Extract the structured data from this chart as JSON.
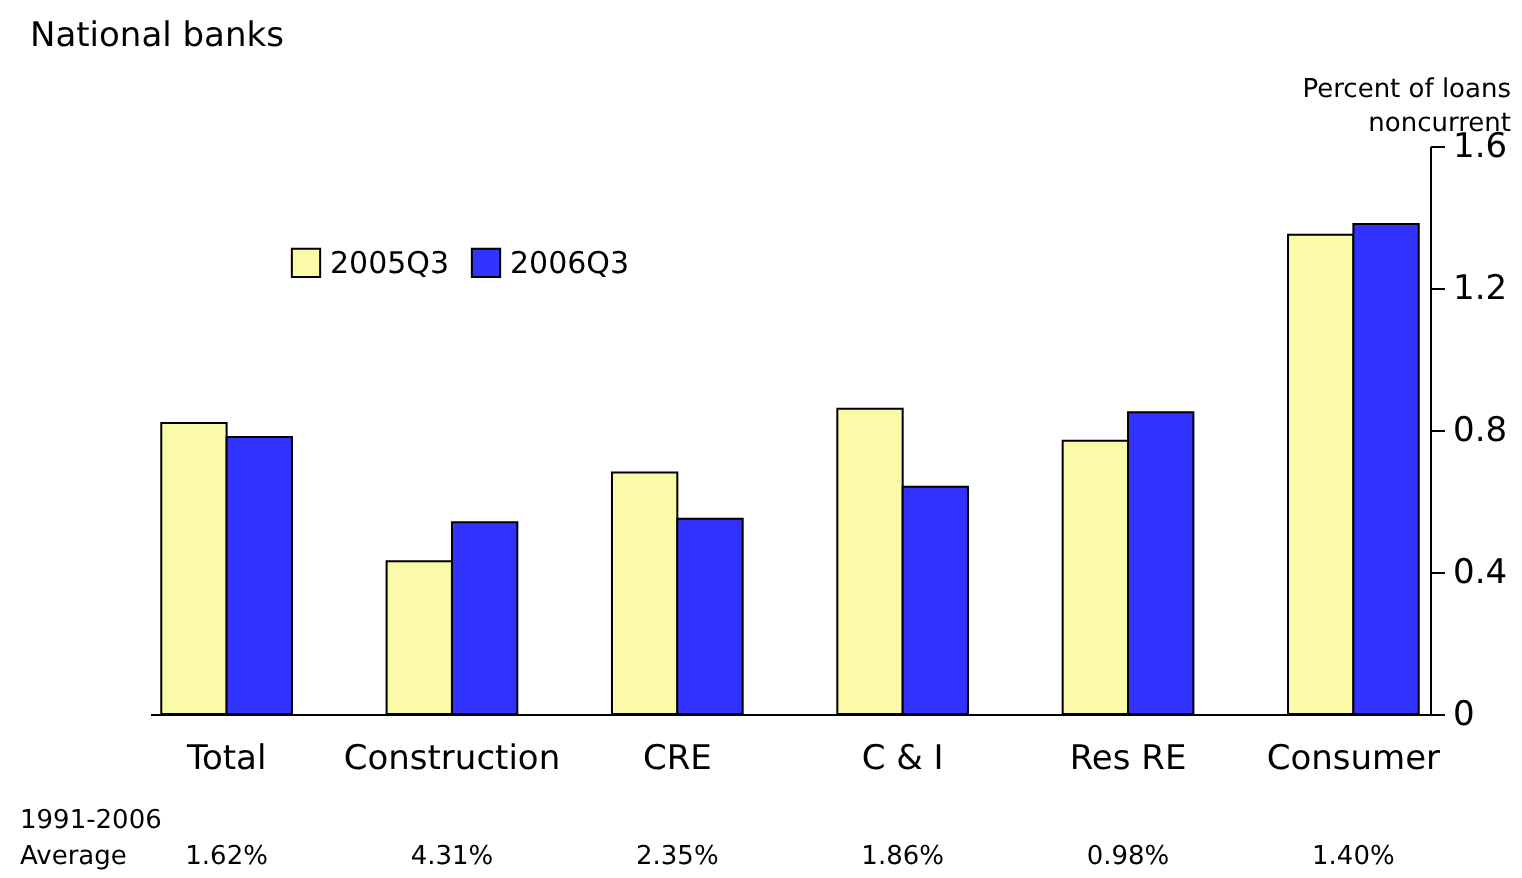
{
  "chart_data": {
    "type": "bar",
    "title": "National banks",
    "ylabel": "Percent of loans noncurrent",
    "categories": [
      "Total",
      "Construction",
      "CRE",
      "C & I",
      "Res RE",
      "Consumer"
    ],
    "series": [
      {
        "name": "2005Q3",
        "color": "#fafaa8",
        "values": [
          0.82,
          0.43,
          0.68,
          0.86,
          0.77,
          1.35
        ]
      },
      {
        "name": "2006Q3",
        "color": "#3333ff",
        "values": [
          0.78,
          0.54,
          0.55,
          0.64,
          0.85,
          1.38
        ]
      }
    ],
    "ylim": [
      0,
      1.6
    ],
    "yticks": [
      {
        "value": 0,
        "label": "0"
      },
      0.4,
      0.8,
      1.2,
      1.6
    ],
    "grid": false,
    "legend": "top left",
    "annotations": [
      "1991-2006 Average",
      "1.62%",
      "4.31%",
      "2.35%",
      "1.86%",
      "0.98%",
      "1.40%"
    ]
  }
}
